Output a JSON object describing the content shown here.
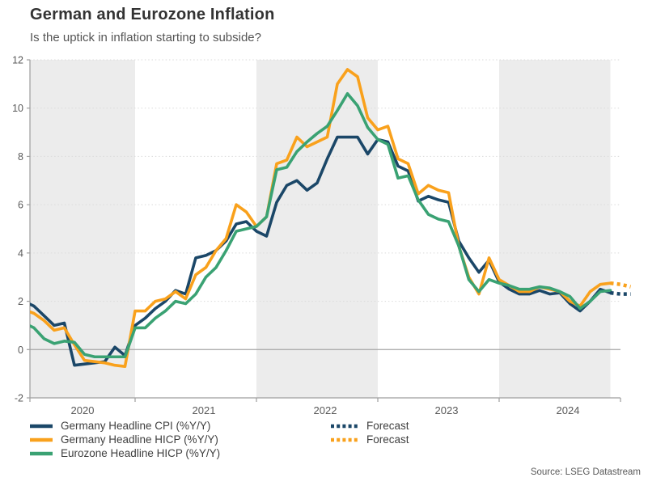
{
  "header": {
    "title": "German and Eurozone Inflation",
    "subtitle": "Is the uptick in inflation starting to subside?"
  },
  "source": "Source: LSEG Datastream",
  "colors": {
    "navy": "#1b4768",
    "orange": "#f9a11c",
    "green": "#3aa273",
    "band": "#ececec",
    "grid": "#dadada",
    "zero_line": "#a6a6a6",
    "axis": "#9e9e9e",
    "tick_label": "#595959",
    "legend_text": "#404040"
  },
  "chart_data": {
    "type": "line",
    "title": "German and Eurozone Inflation",
    "subtitle": "Is the uptick in inflation starting to subside?",
    "x_start": "2020-02",
    "x_step_months": 1,
    "x_tick_labels": [
      "2020",
      "2021",
      "2022",
      "2023",
      "2024"
    ],
    "y_tick_values": [
      -2,
      0,
      2,
      4,
      6,
      8,
      10,
      12
    ],
    "ylim": [
      -2,
      12
    ],
    "grid": "horizontal-dotted",
    "shaded_year_bands": [
      "2020",
      "2022",
      "2024"
    ],
    "legend_position": "bottom-left",
    "source": "Source: LSEG Datastream",
    "series": [
      {
        "name": "Germany Headline CPI (%Y/Y)",
        "color": "#1b4768",
        "values": [
          2.0,
          1.8,
          1.4,
          1.0,
          1.1,
          -0.65,
          -0.6,
          -0.55,
          -0.5,
          0.1,
          -0.25,
          1.0,
          1.3,
          1.7,
          2.0,
          2.45,
          2.3,
          3.8,
          3.9,
          4.1,
          4.5,
          5.2,
          5.3,
          4.9,
          4.7,
          6.1,
          6.8,
          7.0,
          6.6,
          6.9,
          7.9,
          8.8,
          8.8,
          8.8,
          8.1,
          8.7,
          8.6,
          7.6,
          7.4,
          6.15,
          6.35,
          6.2,
          6.1,
          4.5,
          3.8,
          3.2,
          3.7,
          2.8,
          2.5,
          2.3,
          2.3,
          2.45,
          2.3,
          2.35,
          1.9,
          1.6,
          2.0,
          2.5,
          2.35
        ]
      },
      {
        "name": "Germany Headline HICP (%Y/Y)",
        "color": "#f9a11c",
        "values": [
          1.65,
          1.5,
          1.2,
          0.8,
          0.9,
          0.2,
          -0.45,
          -0.5,
          -0.55,
          -0.65,
          -0.7,
          1.6,
          1.6,
          2.0,
          2.1,
          2.4,
          2.1,
          3.1,
          3.4,
          4.1,
          4.6,
          6.0,
          5.7,
          5.1,
          5.5,
          7.7,
          7.85,
          8.8,
          8.4,
          8.6,
          8.8,
          11.0,
          11.6,
          11.3,
          9.6,
          9.1,
          9.25,
          7.9,
          7.7,
          6.45,
          6.8,
          6.6,
          6.5,
          4.3,
          3.0,
          2.3,
          3.8,
          2.9,
          2.65,
          2.4,
          2.4,
          2.6,
          2.5,
          2.4,
          2.0,
          1.8,
          2.4,
          2.7,
          2.75
        ]
      },
      {
        "name": "Eurozone Headline HICP (%Y/Y)",
        "color": "#3aa273",
        "values": [
          1.1,
          0.9,
          0.45,
          0.25,
          0.35,
          0.3,
          -0.2,
          -0.3,
          -0.3,
          -0.3,
          -0.3,
          0.9,
          0.9,
          1.3,
          1.6,
          2.0,
          1.9,
          2.3,
          3.0,
          3.4,
          4.1,
          4.9,
          5.0,
          5.1,
          5.5,
          7.45,
          7.55,
          8.2,
          8.6,
          8.95,
          9.25,
          9.9,
          10.6,
          10.1,
          9.2,
          8.7,
          8.5,
          7.1,
          7.2,
          6.2,
          5.6,
          5.4,
          5.3,
          4.3,
          2.9,
          2.4,
          2.9,
          2.75,
          2.65,
          2.5,
          2.5,
          2.6,
          2.55,
          2.4,
          2.2,
          1.7,
          2.0,
          2.4,
          2.45
        ]
      }
    ],
    "forecast_series": [
      {
        "name": "Forecast",
        "color": "#1b4768",
        "start_index": 58,
        "values": [
          2.35,
          2.3,
          2.3
        ]
      },
      {
        "name": "Forecast",
        "color": "#f9a11c",
        "start_index": 58,
        "values": [
          2.75,
          2.7,
          2.6
        ]
      }
    ]
  }
}
